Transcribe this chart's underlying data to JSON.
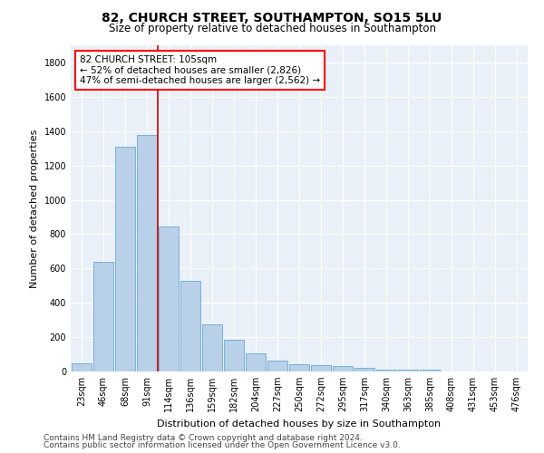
{
  "title_line1": "82, CHURCH STREET, SOUTHAMPTON, SO15 5LU",
  "title_line2": "Size of property relative to detached houses in Southampton",
  "xlabel": "Distribution of detached houses by size in Southampton",
  "ylabel": "Number of detached properties",
  "categories": [
    "23sqm",
    "46sqm",
    "68sqm",
    "91sqm",
    "114sqm",
    "136sqm",
    "159sqm",
    "182sqm",
    "204sqm",
    "227sqm",
    "250sqm",
    "272sqm",
    "295sqm",
    "317sqm",
    "340sqm",
    "363sqm",
    "385sqm",
    "408sqm",
    "431sqm",
    "453sqm",
    "476sqm"
  ],
  "values": [
    50,
    640,
    1310,
    1380,
    845,
    530,
    275,
    185,
    105,
    65,
    40,
    38,
    30,
    20,
    10,
    10,
    10,
    0,
    0,
    0,
    0
  ],
  "bar_color": "#b8d0e8",
  "bar_edge_color": "#6aaad4",
  "background_color": "#eaf0f8",
  "grid_color": "#ffffff",
  "annotation_line_color": "#cc0000",
  "annotation_box_text": "82 CHURCH STREET: 105sqm\n← 52% of detached houses are smaller (2,826)\n47% of semi-detached houses are larger (2,562) →",
  "ylim": [
    0,
    1900
  ],
  "yticks": [
    0,
    200,
    400,
    600,
    800,
    1000,
    1200,
    1400,
    1600,
    1800
  ],
  "footer_line1": "Contains HM Land Registry data © Crown copyright and database right 2024.",
  "footer_line2": "Contains public sector information licensed under the Open Government Licence v3.0.",
  "title_fontsize": 10,
  "subtitle_fontsize": 8.5,
  "axis_label_fontsize": 8,
  "tick_fontsize": 7,
  "annotation_fontsize": 7.5,
  "footer_fontsize": 6.5
}
